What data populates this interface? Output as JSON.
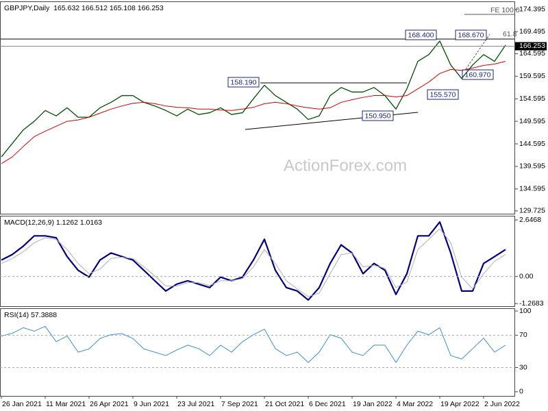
{
  "chart_data": [
    {
      "type": "line",
      "title": "GBPJPY,Daily  165.632 166.512 165.108 166.253",
      "categories": [
        "26 Jan 2021",
        null,
        null,
        null,
        "11 Mar 2021",
        null,
        null,
        null,
        "26 Apr 2021",
        null,
        null,
        null,
        "9 Jun 2021",
        null,
        null,
        null,
        "23 Jul 2021",
        null,
        null,
        null,
        "7 Sep 2021",
        null,
        null,
        null,
        "21 Oct 2021",
        null,
        null,
        null,
        "6 Dec 2021",
        null,
        null,
        null,
        "19 Jan 2022",
        null,
        null,
        null,
        "4 Mar 2022",
        null,
        null,
        null,
        "19 Apr 2022",
        null,
        null,
        null,
        "2 Jun 2022",
        null,
        null
      ],
      "series": [
        {
          "color": "#005000",
          "width": 1.3,
          "values": [
            141.7,
            144.7,
            147.7,
            149.6,
            152.0,
            150.8,
            152.6,
            150.5,
            150.5,
            152.6,
            153.8,
            155.3,
            155.3,
            153.8,
            153.0,
            152.0,
            150.8,
            152.3,
            151.1,
            151.5,
            152.6,
            151.1,
            151.5,
            154.6,
            157.6,
            155.3,
            153.8,
            152.3,
            150.0,
            150.8,
            155.3,
            157.1,
            156.1,
            156.1,
            157.1,
            155.3,
            152.3,
            156.8,
            162.9,
            164.4,
            167.4,
            162.1,
            159.1,
            162.1,
            164.4,
            162.9,
            166.5
          ]
        },
        {
          "color": "#d40000",
          "width": 1,
          "values": [
            140.2,
            141.7,
            144.0,
            146.2,
            147.4,
            148.5,
            149.6,
            149.9,
            150.5,
            151.4,
            152.3,
            153.0,
            153.6,
            153.8,
            153.5,
            153.0,
            152.7,
            152.6,
            152.3,
            152.3,
            152.1,
            152.0,
            152.3,
            152.7,
            153.5,
            153.8,
            153.5,
            153.0,
            152.6,
            152.3,
            152.6,
            153.8,
            154.4,
            154.9,
            155.3,
            155.3,
            155.0,
            155.3,
            156.8,
            158.3,
            160.2,
            161.1,
            160.9,
            161.4,
            162.0,
            162.3,
            162.9
          ]
        }
      ],
      "ylim": [
        129.1,
        176.2
      ],
      "yticks": [
        174.395,
        169.495,
        164.595,
        159.595,
        154.595,
        149.595,
        144.595,
        139.595,
        134.595,
        129.725
      ],
      "last_price": 166.253,
      "watermark": "ActionForex.com",
      "annotations": [
        "158.190",
        "168.400",
        "168.670",
        "150.950",
        "155.570",
        "160.970",
        "FE 100.0",
        "61.8"
      ]
    },
    {
      "type": "line",
      "title": "MACD(12,26,9) 1.1262 1.0163",
      "series": [
        {
          "color": "#000080",
          "width": 2.2,
          "values": [
            0.77,
            1.03,
            1.42,
            1.9,
            1.9,
            1.81,
            0.93,
            0.29,
            -0.03,
            0.77,
            1.1,
            0.93,
            0.77,
            0.29,
            -0.2,
            -0.68,
            -0.36,
            -0.2,
            -0.36,
            -0.52,
            -0.03,
            -0.2,
            -0.03,
            0.77,
            1.74,
            0.29,
            -0.52,
            -0.68,
            -1.1,
            -0.52,
            0.61,
            1.48,
            1.1,
            0.13,
            0.61,
            0.29,
            -0.84,
            0.13,
            1.9,
            1.9,
            2.55,
            1.1,
            -0.68,
            -0.68,
            0.61,
            0.93,
            1.26
          ]
        },
        {
          "color": "#b0b0b0",
          "width": 1,
          "values": [
            0.61,
            0.84,
            1.16,
            1.58,
            1.81,
            1.74,
            1.26,
            0.61,
            0.13,
            0.35,
            0.84,
            0.9,
            0.84,
            0.45,
            0.03,
            -0.45,
            -0.45,
            -0.29,
            -0.29,
            -0.42,
            -0.2,
            -0.2,
            -0.1,
            0.45,
            1.26,
            0.61,
            -0.2,
            -0.58,
            -0.94,
            -0.78,
            0.13,
            1.03,
            1.1,
            0.45,
            0.52,
            0.39,
            -0.52,
            -0.26,
            1.26,
            1.74,
            2.23,
            1.58,
            -0.03,
            -0.58,
            0.13,
            0.71,
            1.03
          ]
        }
      ],
      "ylim": [
        -1.39,
        2.84
      ],
      "yticks": [
        2.6468,
        {
          "value": 0,
          "label": "0.00"
        },
        -1.2683
      ],
      "hlines": [
        0
      ]
    },
    {
      "type": "line",
      "title": "RSI(14) 57.3888",
      "series": [
        {
          "color": "#3d8fd6",
          "width": 1,
          "values": [
            68.9,
            72.4,
            79.3,
            75.0,
            81.0,
            62.0,
            69.0,
            49.0,
            53.0,
            66.0,
            70.6,
            72.0,
            66.0,
            53.0,
            49.0,
            44.8,
            51.7,
            57.7,
            53.4,
            44.8,
            57.7,
            49.0,
            62.0,
            70.6,
            77.5,
            53.4,
            44.8,
            49.0,
            36.2,
            49.0,
            70.6,
            66.3,
            49.0,
            44.8,
            57.7,
            57.7,
            36.2,
            57.7,
            75.0,
            70.6,
            79.3,
            44.8,
            40.5,
            53.4,
            66.3,
            49.0,
            57.7
          ]
        }
      ],
      "ylim": [
        -5.2,
        103.4
      ],
      "yticks": [
        100,
        70,
        30,
        0
      ],
      "hlines": [
        70,
        30
      ]
    }
  ]
}
